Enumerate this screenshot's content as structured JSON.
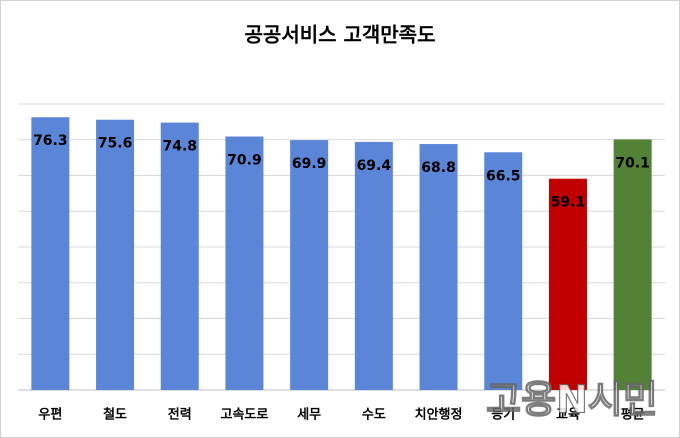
{
  "chart_data": {
    "type": "bar",
    "title": "공공서비스 고객만족도",
    "categories": [
      "우편",
      "철도",
      "전력",
      "고속도로",
      "세무",
      "수도",
      "치안행정",
      "등기",
      "교육",
      "평균"
    ],
    "values": [
      76.3,
      75.6,
      74.8,
      70.9,
      69.9,
      69.4,
      68.8,
      66.5,
      59.1,
      70.1
    ],
    "colors": [
      "#5b86d8",
      "#5b86d8",
      "#5b86d8",
      "#5b86d8",
      "#5b86d8",
      "#5b86d8",
      "#5b86d8",
      "#5b86d8",
      "#c00000",
      "#538135"
    ],
    "ylim": [
      0,
      80
    ],
    "yticks": [
      0,
      10,
      20,
      30,
      40,
      50,
      60,
      70,
      80
    ],
    "grid": true,
    "show_ytick_labels": false,
    "watermark": "고용N시민"
  }
}
